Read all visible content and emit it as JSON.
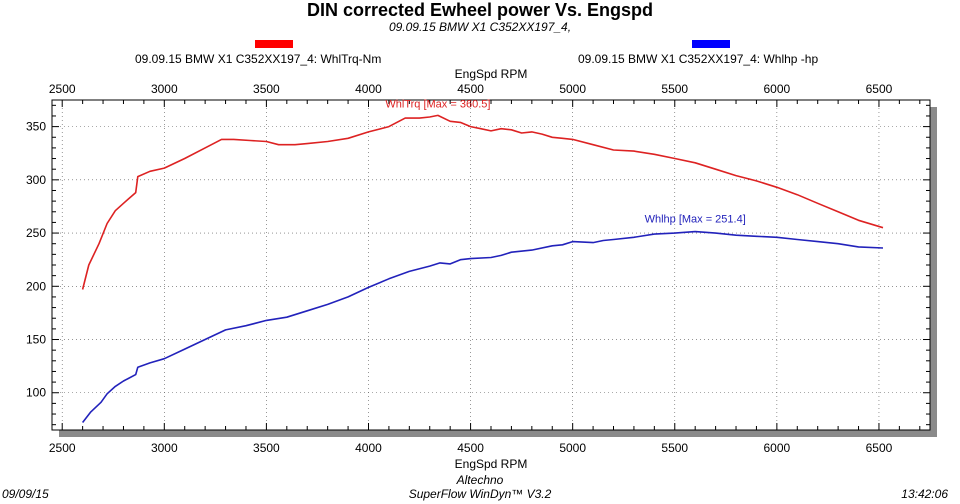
{
  "header": {
    "title": "DIN corrected Ewheel power Vs. Engspd",
    "subtitle": "09.09.15 BMW X1 C352XX197_4,"
  },
  "legend": [
    {
      "label": "09.09.15 BMW X1 C352XX197_4: WhlTrq-Nm",
      "color": "#ff0000"
    },
    {
      "label": "09.09.15 BMW X1 C352XX197_4: Whlhp -hp",
      "color": "#0000ff"
    }
  ],
  "footer": {
    "date": "09/09/15",
    "company": "Altechno",
    "software": "SuperFlow WinDyn™ V3.2",
    "time": "13:42:06"
  },
  "chart_data": {
    "type": "line",
    "title": "DIN corrected Ewheel power Vs. Engspd",
    "subtitle": "09.09.15 BMW X1 C352XX197_4,",
    "xlabel": "EngSpd RPM",
    "ylabel": "",
    "xlim": [
      2450,
      6750
    ],
    "ylim": [
      65,
      375
    ],
    "x_ticks": [
      2500,
      3000,
      3500,
      4000,
      4500,
      5000,
      5500,
      6000,
      6500
    ],
    "y_ticks": [
      100,
      150,
      200,
      250,
      300,
      350
    ],
    "grid": true,
    "legend_position": "top",
    "series": [
      {
        "name": "09.09.15 BMW X1 C352XX197_4: WhlTrq-Nm",
        "color": "#dd2222",
        "annotation": "WhlTrq [Max = 360.5]",
        "x": [
          2600,
          2630,
          2680,
          2720,
          2760,
          2800,
          2860,
          2870,
          2930,
          3000,
          3100,
          3200,
          3280,
          3340,
          3420,
          3500,
          3560,
          3640,
          3700,
          3800,
          3900,
          4000,
          4100,
          4180,
          4250,
          4300,
          4340,
          4400,
          4450,
          4500,
          4550,
          4600,
          4650,
          4700,
          4750,
          4800,
          4850,
          4900,
          4950,
          5000,
          5100,
          5200,
          5300,
          5400,
          5500,
          5600,
          5700,
          5800,
          5900,
          6000,
          6100,
          6200,
          6300,
          6400,
          6520
        ],
        "values": [
          197,
          220,
          240,
          259,
          271,
          278,
          288,
          303,
          308,
          311,
          320,
          330,
          338,
          338,
          337,
          336,
          333,
          333,
          334,
          336,
          339,
          345,
          350,
          358,
          358,
          359,
          360.5,
          355,
          354,
          350,
          348,
          346,
          348,
          347,
          344,
          345,
          343,
          340,
          339,
          338,
          333,
          328,
          327,
          324,
          320,
          316,
          310,
          304,
          299,
          293,
          286,
          278,
          270,
          262,
          255
        ]
      },
      {
        "name": "09.09.15 BMW X1 C352XX197_4: Whlhp -hp",
        "color": "#2222bb",
        "annotation": "Whlhp  [Max = 251.4]",
        "x": [
          2600,
          2640,
          2690,
          2720,
          2760,
          2800,
          2860,
          2870,
          2930,
          3000,
          3100,
          3200,
          3300,
          3400,
          3500,
          3600,
          3700,
          3800,
          3900,
          4000,
          4100,
          4200,
          4300,
          4350,
          4400,
          4450,
          4500,
          4600,
          4650,
          4700,
          4800,
          4900,
          4950,
          5000,
          5100,
          5150,
          5200,
          5300,
          5400,
          5500,
          5600,
          5700,
          5800,
          5900,
          6000,
          6100,
          6200,
          6300,
          6400,
          6520
        ],
        "values": [
          72,
          82,
          91,
          99,
          106,
          111,
          117,
          124,
          128,
          132,
          141,
          150,
          159,
          163,
          168,
          171,
          177,
          183,
          190,
          199,
          207,
          214,
          219,
          222,
          221,
          225,
          226,
          227,
          229,
          232,
          234,
          238,
          239,
          242,
          241,
          243,
          244,
          246,
          249,
          250,
          251.4,
          250,
          248,
          247,
          246,
          244,
          242,
          240,
          237,
          236
        ]
      }
    ]
  }
}
